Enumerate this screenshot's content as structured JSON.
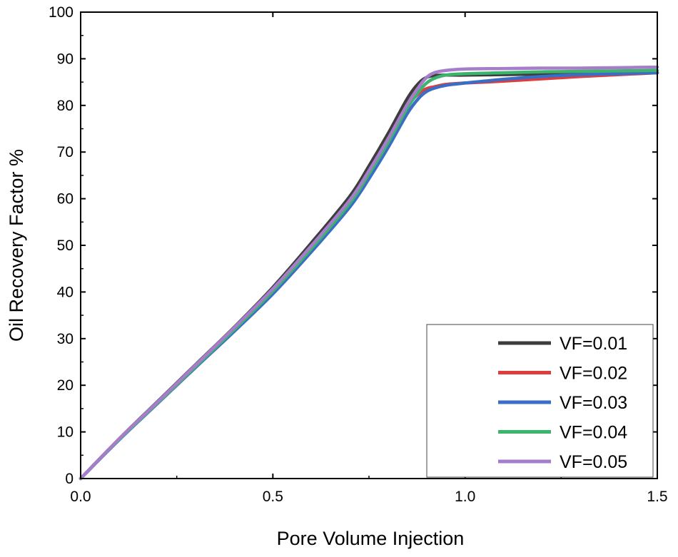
{
  "chart_data": {
    "type": "line",
    "title": "",
    "xlabel": "Pore Volume Injection",
    "ylabel": "Oil Recovery Factor %",
    "xlim": [
      0.0,
      1.5
    ],
    "ylim": [
      0,
      100
    ],
    "xticks": [
      0.0,
      0.5,
      1.0,
      1.5
    ],
    "xtick_labels": [
      "0.0",
      "0.5",
      "1.0",
      "1.5"
    ],
    "yticks": [
      0,
      10,
      20,
      30,
      40,
      50,
      60,
      70,
      80,
      90,
      100
    ],
    "ytick_labels": [
      "0",
      "10",
      "20",
      "30",
      "40",
      "50",
      "60",
      "70",
      "80",
      "90",
      "100"
    ],
    "grid": false,
    "legend_position": "bottom-right",
    "series": [
      {
        "name": "VF=0.01",
        "color": "#3d3d3d",
        "x": [
          0.0,
          0.1,
          0.2,
          0.3,
          0.4,
          0.5,
          0.6,
          0.7,
          0.75,
          0.8,
          0.85,
          0.88,
          0.9,
          0.92,
          0.95,
          1.0,
          1.1,
          1.2,
          1.3,
          1.4,
          1.5
        ],
        "y": [
          0,
          8.5,
          16.5,
          24.5,
          32.5,
          41,
          50.5,
          60.5,
          67,
          74,
          81.5,
          84.8,
          86,
          86.4,
          86.5,
          86.5,
          86.6,
          86.7,
          86.8,
          86.9,
          87
        ]
      },
      {
        "name": "VF=0.02",
        "color": "#e03c3c",
        "x": [
          0.0,
          0.1,
          0.2,
          0.3,
          0.4,
          0.5,
          0.6,
          0.7,
          0.75,
          0.8,
          0.85,
          0.88,
          0.9,
          0.92,
          0.95,
          1.0,
          1.1,
          1.2,
          1.3,
          1.4,
          1.5
        ],
        "y": [
          0,
          8.4,
          16.3,
          24.3,
          32.2,
          40.5,
          49.8,
          59.5,
          65.8,
          72.6,
          79.8,
          82.6,
          83.6,
          84.0,
          84.5,
          84.8,
          85.2,
          85.7,
          86.2,
          86.6,
          87
        ]
      },
      {
        "name": "VF=0.03",
        "color": "#3a6ec4",
        "x": [
          0.0,
          0.1,
          0.2,
          0.3,
          0.4,
          0.5,
          0.6,
          0.7,
          0.75,
          0.8,
          0.85,
          0.88,
          0.9,
          0.92,
          0.95,
          1.0,
          1.05,
          1.1,
          1.2,
          1.3,
          1.4,
          1.5
        ],
        "y": [
          0,
          8.3,
          16.1,
          23.9,
          31.6,
          39.6,
          48.6,
          58.2,
          64.3,
          71.0,
          78.3,
          81.6,
          83.0,
          83.7,
          84.3,
          84.8,
          85.2,
          85.6,
          86.2,
          86.6,
          86.8,
          87
        ]
      },
      {
        "name": "VF=0.04",
        "color": "#3cb46e",
        "x": [
          0.0,
          0.1,
          0.2,
          0.3,
          0.4,
          0.5,
          0.6,
          0.7,
          0.75,
          0.8,
          0.85,
          0.88,
          0.9,
          0.92,
          0.95,
          1.0,
          1.1,
          1.2,
          1.3,
          1.4,
          1.5
        ],
        "y": [
          0,
          8.4,
          16.2,
          24.1,
          32.0,
          40.2,
          49.3,
          59.0,
          65.3,
          72.1,
          79.5,
          83.0,
          84.8,
          85.8,
          86.5,
          86.8,
          87.0,
          87.2,
          87.3,
          87.4,
          87.5
        ]
      },
      {
        "name": "VF=0.05",
        "color": "#a57dc8",
        "x": [
          0.0,
          0.1,
          0.2,
          0.3,
          0.4,
          0.5,
          0.6,
          0.7,
          0.75,
          0.8,
          0.85,
          0.88,
          0.9,
          0.92,
          0.95,
          1.0,
          1.1,
          1.2,
          1.3,
          1.4,
          1.5
        ],
        "y": [
          0,
          8.5,
          16.4,
          24.4,
          32.4,
          40.7,
          49.9,
          59.7,
          66.0,
          72.9,
          80.3,
          84.0,
          86.0,
          87.0,
          87.5,
          87.8,
          87.9,
          88.0,
          88.0,
          88.1,
          88.2
        ]
      }
    ]
  }
}
